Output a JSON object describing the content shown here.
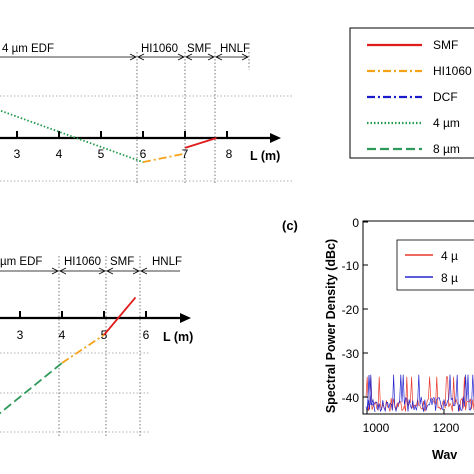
{
  "chart_data": [
    {
      "type": "line",
      "panel": "top-left",
      "title": "",
      "xlabel": "L (m)",
      "x_ticks": [
        "3",
        "4",
        "5",
        "6",
        "7",
        "8"
      ],
      "sections": [
        "4 µm EDF",
        "HI1060",
        "SMF",
        "HNLF"
      ],
      "section_bounds_m": [
        6,
        7,
        7.75,
        8.75
      ],
      "series": [
        {
          "name": "SMF",
          "points": [
            [
              7.0,
              -0.7
            ],
            [
              7.75,
              0.0
            ]
          ]
        },
        {
          "name": "HI1060",
          "points": [
            [
              6.0,
              -1.7
            ],
            [
              7.0,
              -1.1
            ]
          ]
        },
        {
          "name": "4 µm",
          "points": [
            [
              1.6,
              3.0
            ],
            [
              6.0,
              -1.7
            ]
          ]
        }
      ]
    },
    {
      "type": "line",
      "panel": "bottom-left",
      "title": "",
      "xlabel": "L (m)",
      "x_ticks": [
        "3",
        "4",
        "5",
        "6"
      ],
      "sections": [
        "µm EDF",
        "HI1060",
        "SMF",
        "HNLF"
      ],
      "section_bounds_m": [
        4,
        5,
        5.75,
        6.75
      ],
      "series": [
        {
          "name": "SMF",
          "points": [
            [
              5.0,
              -0.45
            ],
            [
              5.75,
              0.55
            ]
          ]
        },
        {
          "name": "HI1060",
          "points": [
            [
              4.0,
              -1.2
            ],
            [
              5.0,
              -0.45
            ]
          ]
        },
        {
          "name": "8 µm",
          "points": [
            [
              1.9,
              -3.1
            ],
            [
              4.0,
              -1.2
            ]
          ]
        }
      ]
    },
    {
      "type": "line",
      "panel": "(c)",
      "title": "",
      "xlabel": "Wav",
      "ylabel": "Spectral Power Density (dBc)",
      "xlim": [
        1000,
        1400
      ],
      "ylim": [
        -45,
        0
      ],
      "x_ticks": [
        "1000",
        "1200"
      ],
      "y_ticks": [
        "0",
        "-10",
        "-20",
        "-30",
        "-40"
      ],
      "series": [
        {
          "name": "4 µ",
          "color": "#e8392b"
        },
        {
          "name": "8 µ",
          "color": "#2626d0"
        }
      ]
    }
  ],
  "legend": {
    "entries": [
      {
        "label": "SMF",
        "color": "#e01b1b",
        "style": "solid"
      },
      {
        "label": "HI1060",
        "color": "#f5a21b",
        "style": "dash-dot"
      },
      {
        "label": "DCF",
        "color": "#1a1ac8",
        "style": "dash-dot"
      },
      {
        "label": "4 µm",
        "color": "#1f9a4a",
        "style": "dotted"
      },
      {
        "label": "8 µm",
        "color": "#2e9a5a",
        "style": "dashed"
      }
    ]
  },
  "panel_c_label": "(c)",
  "panel_c_legend": [
    "4 µ",
    "8 µ"
  ]
}
